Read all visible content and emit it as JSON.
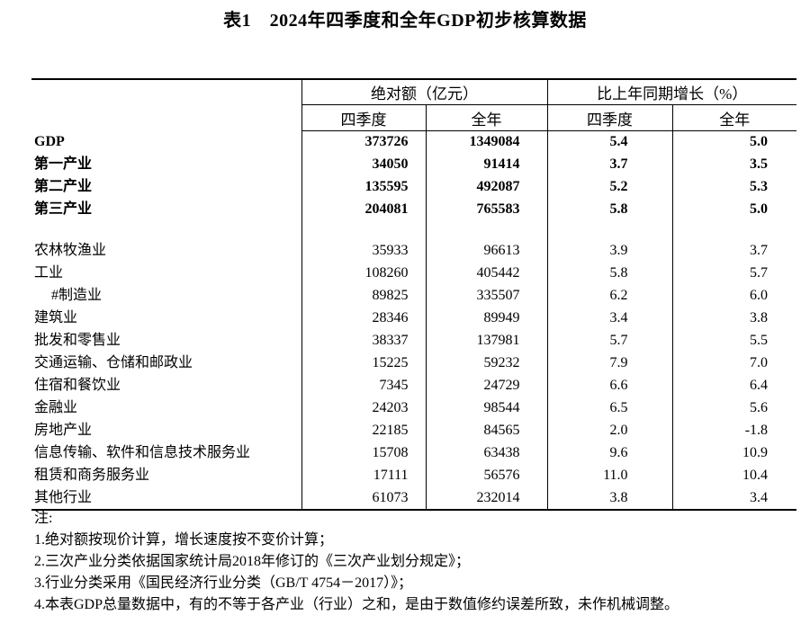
{
  "title": "表1　2024年四季度和全年GDP初步核算数据",
  "table": {
    "col_groups": [
      {
        "label": "绝对额（亿元）",
        "sub": [
          "四季度",
          "全年"
        ]
      },
      {
        "label": "比上年同期增长（%）",
        "sub": [
          "四季度",
          "全年"
        ]
      }
    ],
    "rows": [
      {
        "label": "GDP",
        "bold": true,
        "values": [
          "373726",
          "1349084",
          "5.4",
          "5.0"
        ]
      },
      {
        "label": "第一产业",
        "bold": true,
        "values": [
          "34050",
          "91414",
          "3.7",
          "3.5"
        ]
      },
      {
        "label": "第二产业",
        "bold": true,
        "values": [
          "135595",
          "492087",
          "5.2",
          "5.3"
        ]
      },
      {
        "label": "第三产业",
        "bold": true,
        "values": [
          "204081",
          "765583",
          "5.8",
          "5.0"
        ]
      },
      {
        "blank": true,
        "label": "",
        "values": [
          "",
          "",
          "",
          ""
        ]
      },
      {
        "label": "农林牧渔业",
        "values": [
          "35933",
          "96613",
          "3.9",
          "3.7"
        ]
      },
      {
        "label": "工业",
        "values": [
          "108260",
          "405442",
          "5.8",
          "5.7"
        ]
      },
      {
        "label": "#制造业",
        "indent": true,
        "values": [
          "89825",
          "335507",
          "6.2",
          "6.0"
        ]
      },
      {
        "label": "建筑业",
        "values": [
          "28346",
          "89949",
          "3.4",
          "3.8"
        ]
      },
      {
        "label": "批发和零售业",
        "values": [
          "38337",
          "137981",
          "5.7",
          "5.5"
        ]
      },
      {
        "label": "交通运输、仓储和邮政业",
        "values": [
          "15225",
          "59232",
          "7.9",
          "7.0"
        ]
      },
      {
        "label": "住宿和餐饮业",
        "values": [
          "7345",
          "24729",
          "6.6",
          "6.4"
        ]
      },
      {
        "label": "金融业",
        "values": [
          "24203",
          "98544",
          "6.5",
          "5.6"
        ]
      },
      {
        "label": "房地产业",
        "values": [
          "22185",
          "84565",
          "2.0",
          "-1.8"
        ]
      },
      {
        "label": "信息传输、软件和信息技术服务业",
        "values": [
          "15708",
          "63438",
          "9.6",
          "10.9"
        ]
      },
      {
        "label": "租赁和商务服务业",
        "values": [
          "17111",
          "56576",
          "11.0",
          "10.4"
        ]
      },
      {
        "label": "其他行业",
        "values": [
          "61073",
          "232014",
          "3.8",
          "3.4"
        ]
      }
    ]
  },
  "notes": [
    "注:",
    "1.绝对额按现价计算，增长速度按不变价计算；",
    "2.三次产业分类依据国家统计局2018年修订的《三次产业划分规定》；",
    "3.行业分类采用《国民经济行业分类（GB/T 4754－2017）》；",
    "4.本表GDP总量数据中，有的不等于各产业（行业）之和，是由于数值修约误差所致，未作机械调整。"
  ]
}
